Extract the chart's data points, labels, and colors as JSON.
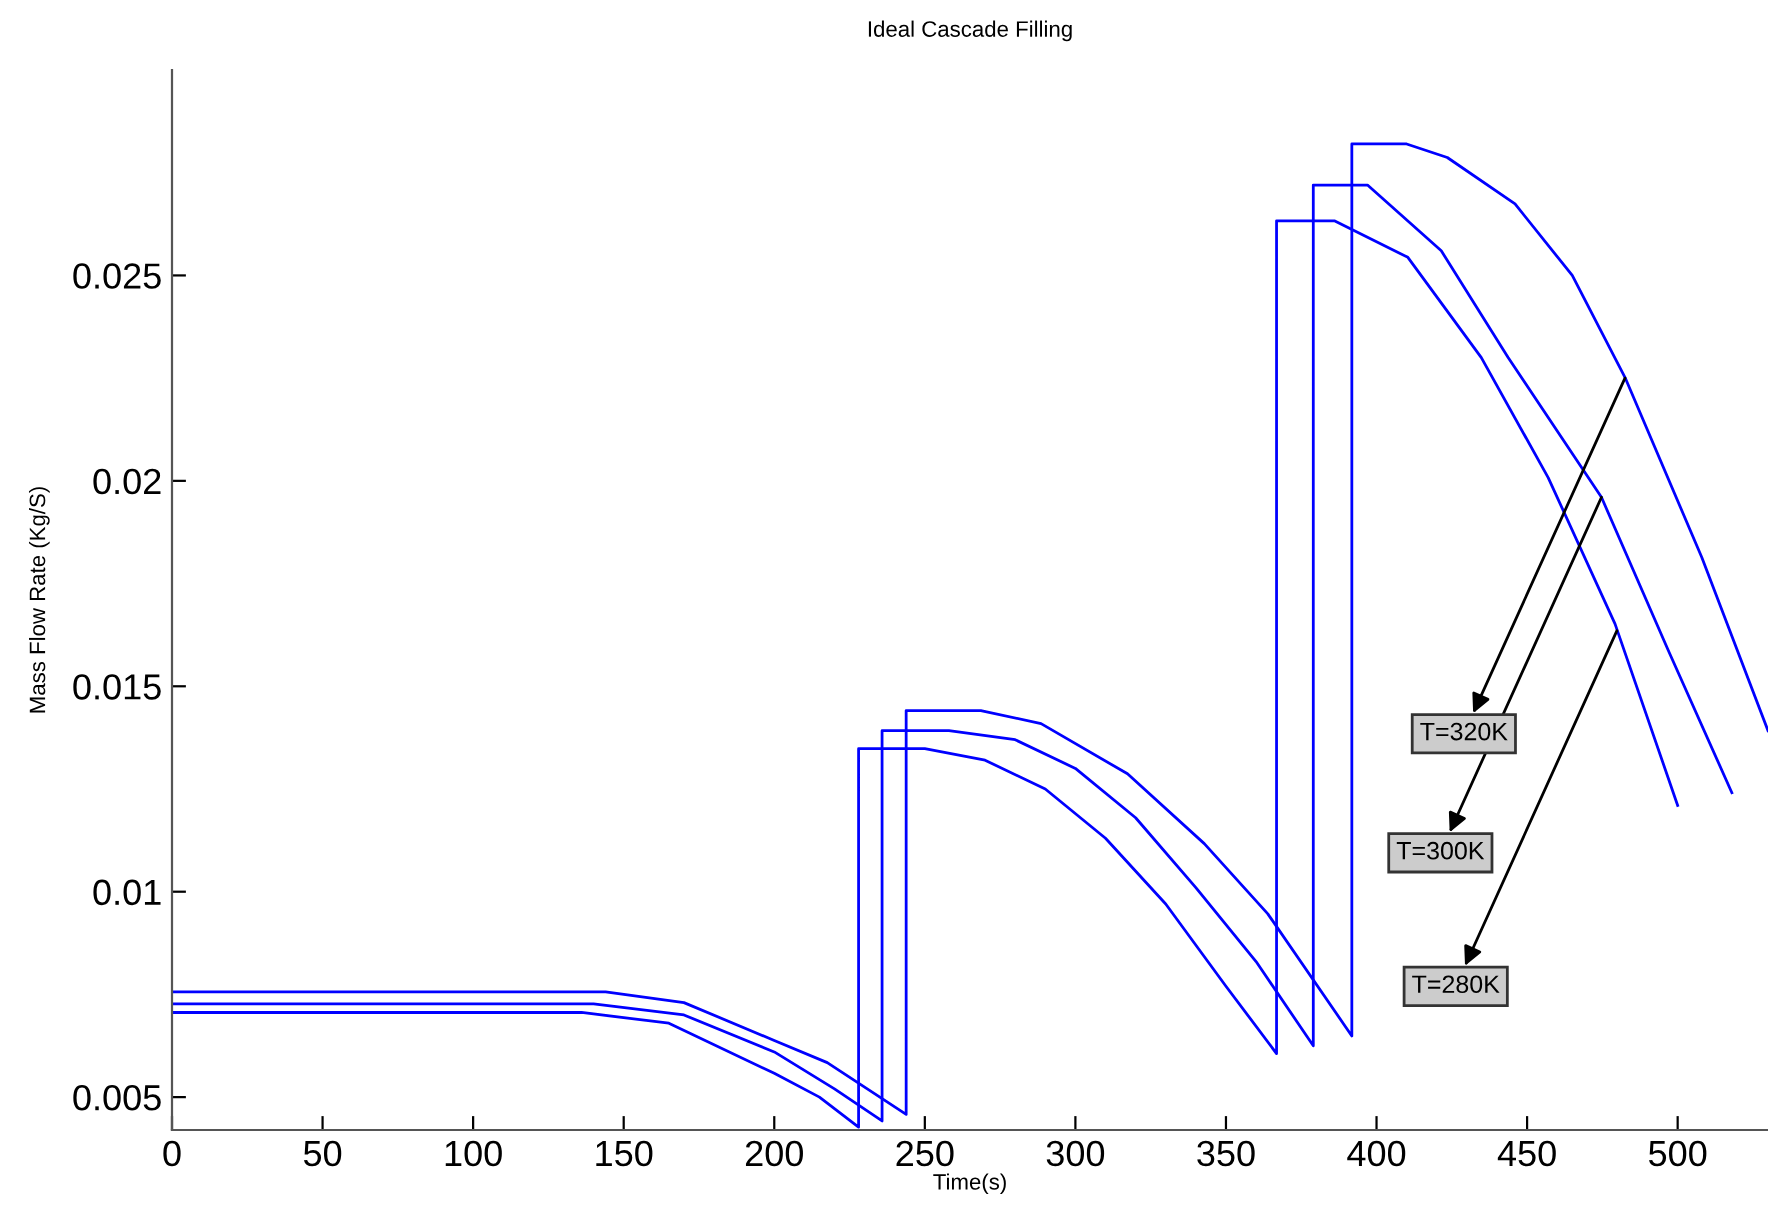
{
  "chart_data": {
    "type": "line",
    "title": "Ideal Cascade Filling",
    "xlabel": "Time(s)",
    "ylabel": "Mass Flow Rate (Kg/S)",
    "xlim": [
      0,
      530
    ],
    "ylim": [
      0.0042,
      0.03
    ],
    "xticks": [
      0,
      50,
      100,
      150,
      200,
      250,
      300,
      350,
      400,
      450,
      500
    ],
    "yticks": [
      0.005,
      0.01,
      0.015,
      0.02,
      0.025
    ],
    "series": [
      {
        "color": "#0000ff",
        "x": [
          0,
          144,
          170,
          200,
          217.6,
          243.8,
          243.8,
          268.6,
          288.6,
          317.3,
          342.8,
          363.9,
          391.8,
          391.8,
          410,
          423.5,
          446,
          465,
          482.5,
          508,
          530
        ],
        "values": [
          0.00756,
          0.00756,
          0.0073,
          0.00638,
          0.00584,
          0.00458,
          0.01441,
          0.01441,
          0.01409,
          0.01287,
          0.01117,
          0.00946,
          0.00649,
          0.0282,
          0.0282,
          0.02787,
          0.02674,
          0.025,
          0.02252,
          0.01814,
          0.01392
        ]
      },
      {
        "color": "#0000ff",
        "x": [
          0,
          140,
          170,
          200,
          220,
          235.8,
          235.8,
          258,
          280,
          300,
          320,
          340,
          360,
          379,
          379,
          397,
          421.5,
          443.7,
          474.7,
          496.9,
          518
        ],
        "values": [
          0.00727,
          0.00727,
          0.007,
          0.0061,
          0.0052,
          0.00442,
          0.01392,
          0.01392,
          0.0137,
          0.013,
          0.0118,
          0.0101,
          0.0083,
          0.00625,
          0.0272,
          0.0272,
          0.0256,
          0.023,
          0.0196,
          0.01587,
          0.01241
        ]
      },
      {
        "color": "#0000ff",
        "x": [
          0,
          136,
          165,
          200,
          215,
          228,
          228,
          250,
          270,
          290,
          310,
          330,
          350,
          366.8,
          366.8,
          386,
          410.4,
          434.8,
          457,
          479.2,
          500
        ],
        "values": [
          0.00706,
          0.00706,
          0.0068,
          0.00558,
          0.005,
          0.00427,
          0.01348,
          0.01348,
          0.0132,
          0.0125,
          0.0113,
          0.0097,
          0.0077,
          0.00606,
          0.02633,
          0.02633,
          0.02544,
          0.023,
          0.02008,
          0.01652,
          0.0121
        ]
      }
    ],
    "annotations": [
      {
        "text": "T=320K",
        "x": 482.5,
        "y": 0.0225
      },
      {
        "text": "T=300K",
        "x": 474.7,
        "y": 0.0196
      },
      {
        "text": "T=280K",
        "x": 479.8,
        "y": 0.01635
      }
    ]
  }
}
